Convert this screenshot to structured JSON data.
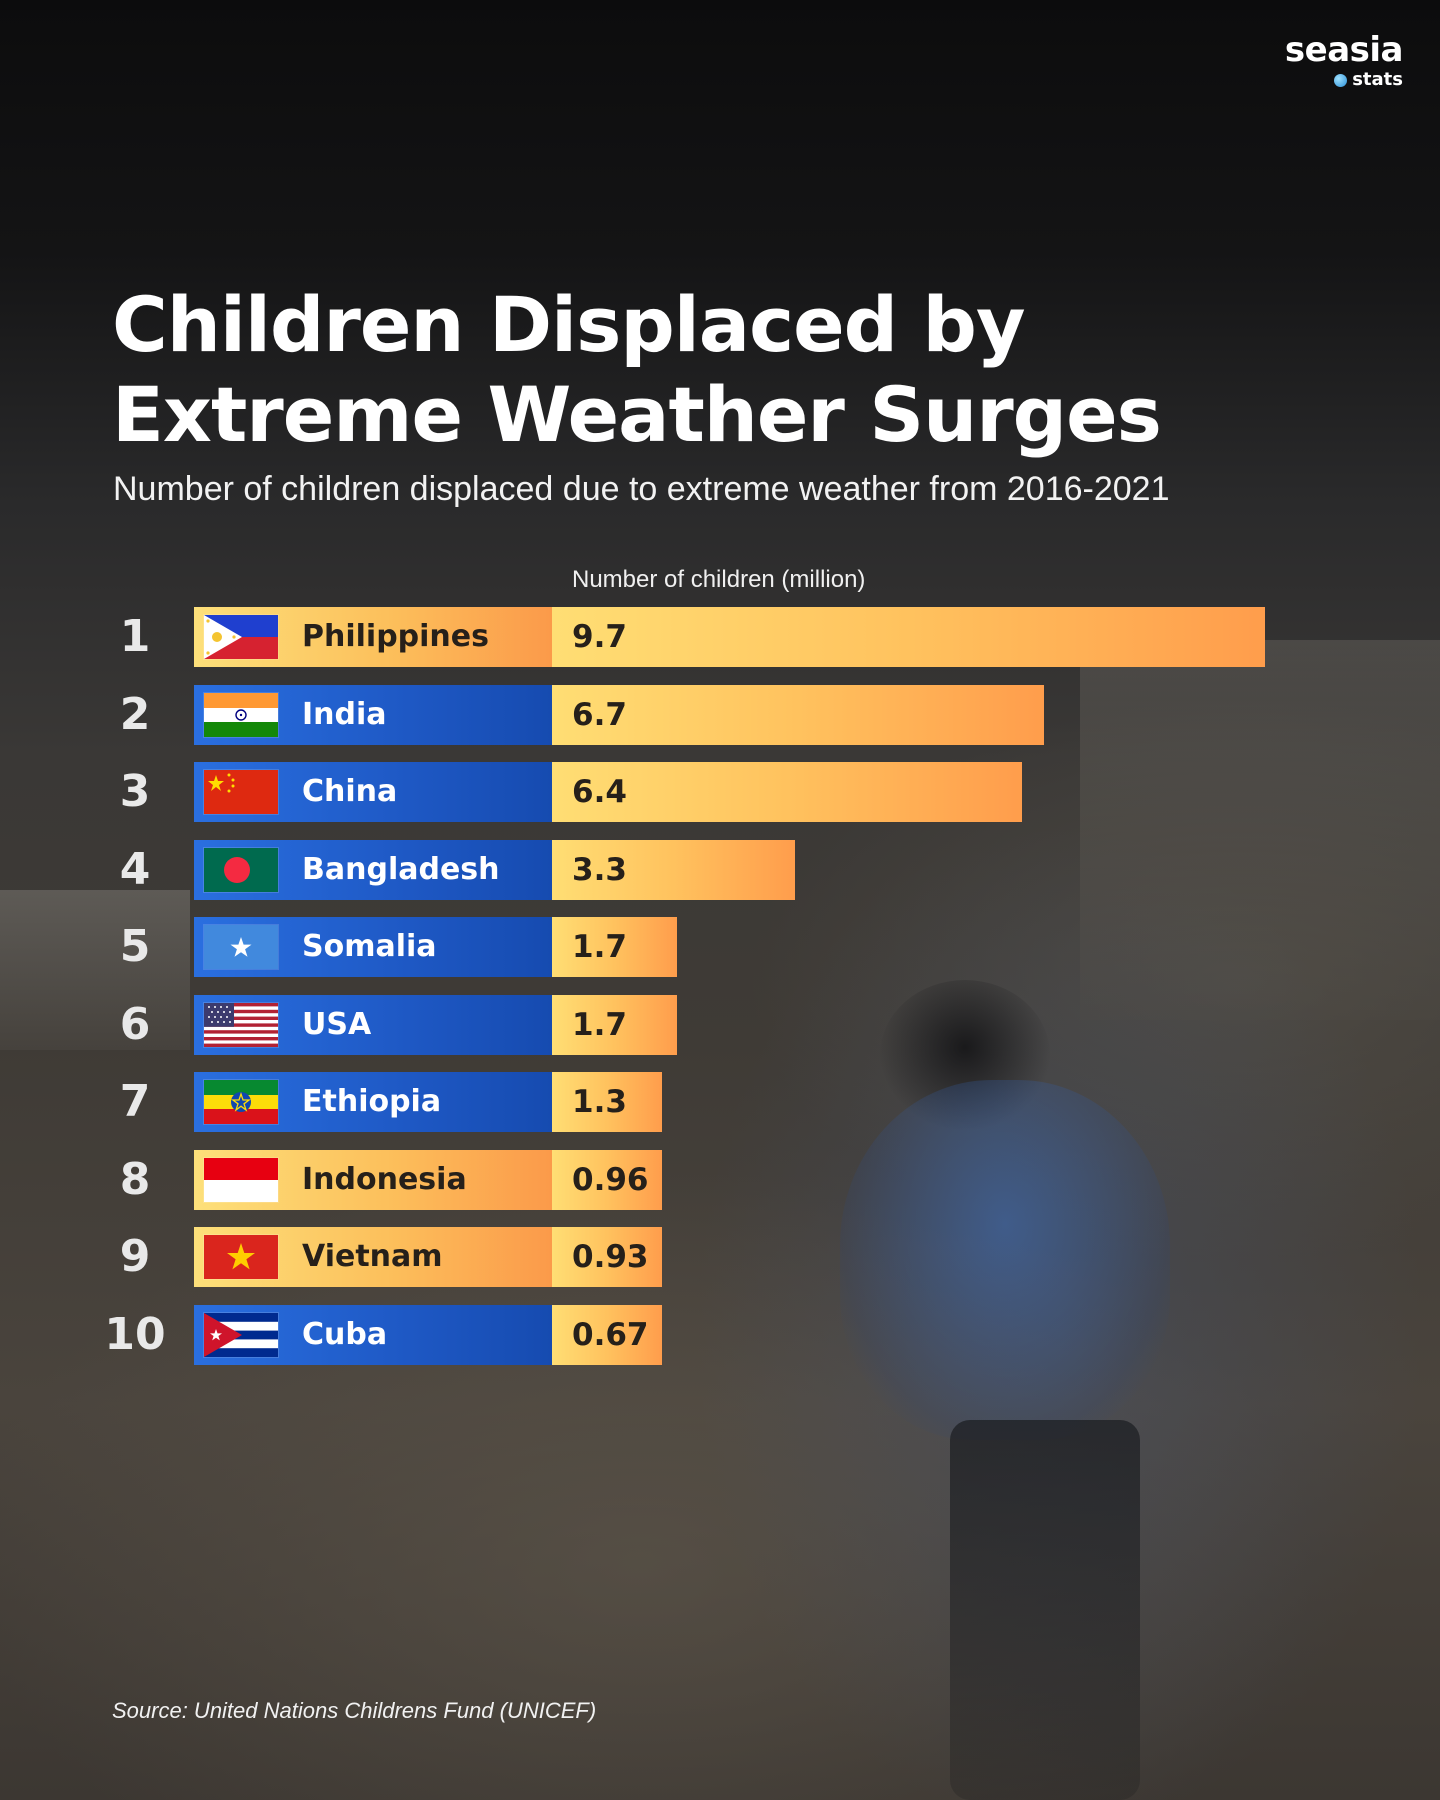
{
  "brand": {
    "name": "seasia",
    "sub": "stats"
  },
  "chart_data": {
    "type": "bar",
    "orientation": "horizontal",
    "title": "Children Displaced by\nExtreme Weather Surges",
    "subtitle": "Number of children displaced due to extreme weather from 2016-2021",
    "xlabel": "Number of children (million)",
    "ylabel": "",
    "xlim": [
      0,
      9.7
    ],
    "grid": false,
    "categories": [
      "Philippines",
      "India",
      "China",
      "Bangladesh",
      "Somalia",
      "USA",
      "Ethiopia",
      "Indonesia",
      "Vietnam",
      "Cuba"
    ],
    "ranks": [
      "1",
      "2",
      "3",
      "4",
      "5",
      "6",
      "7",
      "8",
      "9",
      "10"
    ],
    "values": [
      9.7,
      6.7,
      6.4,
      3.3,
      1.7,
      1.7,
      1.3,
      0.96,
      0.93,
      0.67
    ],
    "value_labels": [
      "9.7",
      "6.7",
      "6.4",
      "3.3",
      "1.7",
      "1.7",
      "1.3",
      "0.96",
      "0.93",
      "0.67"
    ],
    "flags": [
      "philippines-flag-icon",
      "india-flag-icon",
      "china-flag-icon",
      "bangladesh-flag-icon",
      "somalia-flag-icon",
      "usa-flag-icon",
      "ethiopia-flag-icon",
      "indonesia-flag-icon",
      "vietnam-flag-icon",
      "cuba-flag-icon"
    ],
    "label_styles": [
      "orange",
      "blue",
      "blue",
      "blue",
      "blue",
      "blue",
      "blue",
      "orange",
      "orange",
      "blue"
    ],
    "colors": {
      "bar": "#ffc25e",
      "label_orange": "#fcbf5b",
      "label_blue": "#1e58c4"
    }
  },
  "source": "Source: United Nations Childrens Fund (UNICEF)"
}
